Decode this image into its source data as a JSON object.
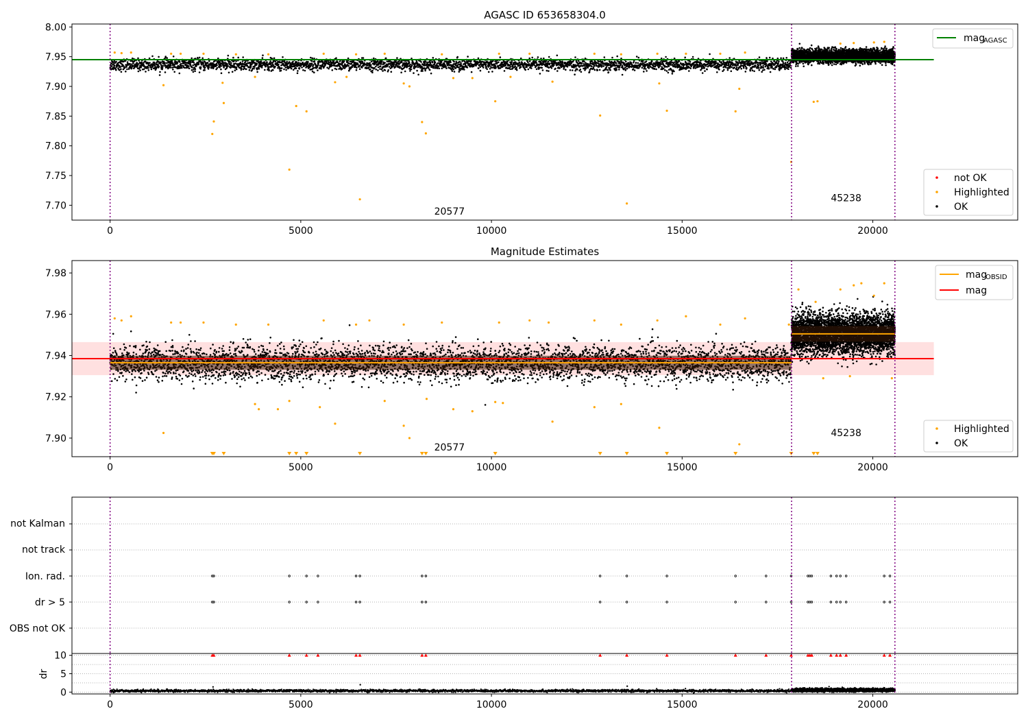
{
  "chart_data": [
    {
      "type": "scatter",
      "title": "AGASC ID 653658304.0",
      "xlim": [
        -1000,
        23800
      ],
      "ylim": [
        7.675,
        8.005
      ],
      "x_ticks": [
        0,
        5000,
        10000,
        15000,
        20000
      ],
      "y_ticks": [
        7.7,
        7.75,
        7.8,
        7.85,
        7.9,
        7.95,
        8.0
      ],
      "x_tick_labels": [
        "0",
        "5000",
        "10000",
        "15000",
        "20000"
      ],
      "y_tick_labels": [
        "7.70",
        "7.75",
        "7.80",
        "7.85",
        "7.90",
        "7.95",
        "8.00"
      ],
      "grid": false,
      "vlines": [
        0,
        17870,
        20580
      ],
      "mag_agasc": 7.945,
      "legend_top": {
        "placement": "top-right",
        "entries": [
          {
            "label": "mag",
            "sub": "AGASC",
            "color": "#008000"
          }
        ]
      },
      "legend_bottom": {
        "placement": "bottom-right",
        "entries": [
          {
            "label": "not OK",
            "color": "#ff0000"
          },
          {
            "label": "Highlighted",
            "color": "#ffa500"
          },
          {
            "label": "OK",
            "color": "#000000"
          }
        ]
      },
      "annotations": [
        {
          "text": "20577",
          "x": 8900,
          "y": 7.684
        },
        {
          "text": "45238",
          "x": 19300,
          "y": 7.707
        }
      ],
      "series": [
        {
          "name": "OK",
          "color": "#000000",
          "x_range": [
            0,
            20580
          ],
          "segments": [
            {
              "x": [
                0,
                17870
              ],
              "mean": 7.9365,
              "spread": 0.01
            },
            {
              "x": [
                17870,
                20580
              ],
              "mean": 7.951,
              "spread": 0.011
            }
          ]
        },
        {
          "name": "Highlighted",
          "color": "#ffa500",
          "points": [
            [
              1400,
              7.902
            ],
            [
              2680,
              7.82
            ],
            [
              2720,
              7.841
            ],
            [
              2950,
              7.906
            ],
            [
              2980,
              7.872
            ],
            [
              3800,
              7.916
            ],
            [
              4700,
              7.76
            ],
            [
              4880,
              7.867
            ],
            [
              5150,
              7.858
            ],
            [
              6550,
              7.71
            ],
            [
              7700,
              7.905
            ],
            [
              7850,
              7.9
            ],
            [
              8180,
              7.84
            ],
            [
              8280,
              7.821
            ],
            [
              10100,
              7.875
            ],
            [
              11600,
              7.908
            ],
            [
              12850,
              7.851
            ],
            [
              13550,
              7.703
            ],
            [
              14400,
              7.905
            ],
            [
              14600,
              7.859
            ],
            [
              16400,
              7.858
            ],
            [
              16500,
              7.896
            ],
            [
              17860,
              7.773
            ],
            [
              18450,
              7.874
            ],
            [
              18550,
              7.875
            ],
            [
              120,
              7.957
            ],
            [
              300,
              7.956
            ],
            [
              550,
              7.957
            ],
            [
              1600,
              7.955
            ],
            [
              1850,
              7.955
            ],
            [
              2450,
              7.955
            ],
            [
              3300,
              7.954
            ],
            [
              4150,
              7.954
            ],
            [
              5600,
              7.955
            ],
            [
              6450,
              7.954
            ],
            [
              7200,
              7.955
            ],
            [
              8700,
              7.954
            ],
            [
              10200,
              7.955
            ],
            [
              11000,
              7.955
            ],
            [
              12700,
              7.955
            ],
            [
              13400,
              7.954
            ],
            [
              14350,
              7.955
            ],
            [
              15100,
              7.955
            ],
            [
              16000,
              7.955
            ],
            [
              16650,
              7.957
            ],
            [
              19150,
              7.972
            ],
            [
              19500,
              7.973
            ],
            [
              20030,
              7.974
            ],
            [
              20300,
              7.975
            ],
            [
              5900,
              7.907
            ],
            [
              9000,
              7.914
            ],
            [
              9500,
              7.914
            ],
            [
              6200,
              7.916
            ],
            [
              10500,
              7.916
            ]
          ]
        }
      ]
    },
    {
      "type": "scatter",
      "title": "Magnitude Estimates",
      "xlim": [
        -1000,
        23800
      ],
      "ylim": [
        7.891,
        7.986
      ],
      "x_ticks": [
        0,
        5000,
        10000,
        15000,
        20000
      ],
      "y_ticks": [
        7.9,
        7.92,
        7.94,
        7.96,
        7.98
      ],
      "x_tick_labels": [
        "0",
        "5000",
        "10000",
        "15000",
        "20000"
      ],
      "y_tick_labels": [
        "7.90",
        "7.92",
        "7.94",
        "7.96",
        "7.98"
      ],
      "grid": false,
      "vlines": [
        0,
        17870,
        20580
      ],
      "mag": 7.9385,
      "mag_band": [
        7.9305,
        7.9465
      ],
      "mag_obsid": [
        {
          "x": [
            0,
            17870
          ],
          "value": 7.9365
        },
        {
          "x": [
            17870,
            20580
          ],
          "value": 7.9505
        }
      ],
      "legend_top": {
        "placement": "top-right",
        "entries": [
          {
            "label": "mag",
            "sub": "OBSID",
            "color": "#ffa500"
          },
          {
            "label": "mag",
            "sub": "",
            "color": "#ff0000"
          }
        ]
      },
      "legend_bottom": {
        "placement": "bottom-right",
        "entries": [
          {
            "label": "Highlighted",
            "color": "#ffa500"
          },
          {
            "label": "OK",
            "color": "#000000"
          }
        ]
      },
      "annotations": [
        {
          "text": "20577",
          "x": 8900,
          "y": 7.894
        },
        {
          "text": "45238",
          "x": 19300,
          "y": 7.901
        }
      ],
      "out_of_range_markers": [
        2680,
        2720,
        2980,
        4700,
        4880,
        5150,
        6550,
        8180,
        8280,
        10100,
        12850,
        13550,
        14600,
        16400,
        17860,
        18450,
        18550
      ],
      "series": [
        {
          "name": "OK",
          "color": "#000000",
          "segments": [
            {
              "x": [
                0,
                17870
              ],
              "mean": 7.9365,
              "spread": 0.0085
            },
            {
              "x": [
                17870,
                20580
              ],
              "mean": 7.9505,
              "spread": 0.0095
            }
          ]
        },
        {
          "name": "Highlighted",
          "color": "#ffa500",
          "points": [
            [
              1400,
              7.9025
            ],
            [
              3800,
              7.9165
            ],
            [
              3900,
              7.914
            ],
            [
              4400,
              7.914
            ],
            [
              4700,
              7.918
            ],
            [
              5900,
              7.907
            ],
            [
              7700,
              7.906
            ],
            [
              7850,
              7.9
            ],
            [
              9000,
              7.914
            ],
            [
              9500,
              7.913
            ],
            [
              10100,
              7.9175
            ],
            [
              10300,
              7.917
            ],
            [
              11600,
              7.908
            ],
            [
              12700,
              7.915
            ],
            [
              13400,
              7.9165
            ],
            [
              14400,
              7.905
            ],
            [
              16500,
              7.897
            ],
            [
              5500,
              7.915
            ],
            [
              7200,
              7.918
            ],
            [
              8300,
              7.919
            ],
            [
              120,
              7.958
            ],
            [
              300,
              7.957
            ],
            [
              550,
              7.959
            ],
            [
              1600,
              7.956
            ],
            [
              1850,
              7.956
            ],
            [
              2450,
              7.956
            ],
            [
              3300,
              7.955
            ],
            [
              4150,
              7.955
            ],
            [
              5600,
              7.957
            ],
            [
              6450,
              7.955
            ],
            [
              6800,
              7.957
            ],
            [
              7700,
              7.955
            ],
            [
              8700,
              7.956
            ],
            [
              10200,
              7.956
            ],
            [
              11000,
              7.957
            ],
            [
              11500,
              7.956
            ],
            [
              12700,
              7.957
            ],
            [
              13400,
              7.955
            ],
            [
              14350,
              7.957
            ],
            [
              15100,
              7.959
            ],
            [
              16000,
              7.955
            ],
            [
              16650,
              7.958
            ],
            [
              17800,
              7.955
            ],
            [
              18050,
              7.972
            ],
            [
              18500,
              7.966
            ],
            [
              19150,
              7.972
            ],
            [
              19500,
              7.974
            ],
            [
              19700,
              7.975
            ],
            [
              20030,
              7.969
            ],
            [
              20300,
              7.975
            ],
            [
              18700,
              7.929
            ],
            [
              19400,
              7.93
            ],
            [
              20500,
              7.929
            ]
          ]
        }
      ]
    },
    {
      "type": "scatter",
      "xlim": [
        -1000,
        23800
      ],
      "categories": [
        "not Kalman",
        "not track",
        "Ion. rad.",
        "dr > 5",
        "OBS not OK"
      ],
      "grid": true,
      "vlines": [
        0,
        17870,
        20580
      ],
      "flag_times": {
        "Ion. rad.": [
          2680,
          2720,
          4700,
          5150,
          5450,
          6450,
          6550,
          8180,
          8280,
          12850,
          13550,
          14600,
          16400,
          17200,
          17860,
          18300,
          18350,
          18400,
          18900,
          19050,
          19150,
          19300,
          20300,
          20450
        ],
        "dr > 5": [
          2680,
          2720,
          4700,
          5150,
          5450,
          6450,
          6550,
          8180,
          8280,
          12850,
          13550,
          14600,
          16400,
          17200,
          17860,
          18300,
          18350,
          18400,
          18900,
          19050,
          19150,
          19300,
          20300,
          20450
        ]
      }
    },
    {
      "type": "scatter",
      "xlim": [
        -1000,
        23800
      ],
      "ylim": [
        -0.5,
        10.5
      ],
      "ylabel": "dr",
      "y_ticks": [
        0,
        5,
        10
      ],
      "y_tick_labels": [
        "0",
        "5",
        "10"
      ],
      "x_ticks": [
        0,
        5000,
        10000,
        15000,
        20000
      ],
      "x_tick_labels": [
        "0",
        "5000",
        "10000",
        "15000",
        "20000"
      ],
      "grid": true,
      "vlines": [
        0,
        17870,
        20580
      ],
      "clipped_markers": [
        2680,
        2720,
        4700,
        5150,
        5450,
        6450,
        6550,
        8180,
        8280,
        12850,
        13550,
        14600,
        16400,
        17200,
        17860,
        18300,
        18350,
        18400,
        18900,
        19050,
        19150,
        19300,
        20300,
        20450
      ],
      "series": [
        {
          "name": "dr",
          "color": "#000000",
          "segments": [
            {
              "x": [
                0,
                17870
              ],
              "mean": 0.35,
              "spread": 0.35
            },
            {
              "x": [
                17870,
                20580
              ],
              "mean": 0.55,
              "spread": 0.45
            }
          ],
          "outliers": [
            [
              2700,
              1.4
            ],
            [
              6560,
              2.0
            ],
            [
              13560,
              1.6
            ],
            [
              18000,
              1.1
            ],
            [
              19200,
              1.3
            ]
          ]
        }
      ]
    }
  ]
}
